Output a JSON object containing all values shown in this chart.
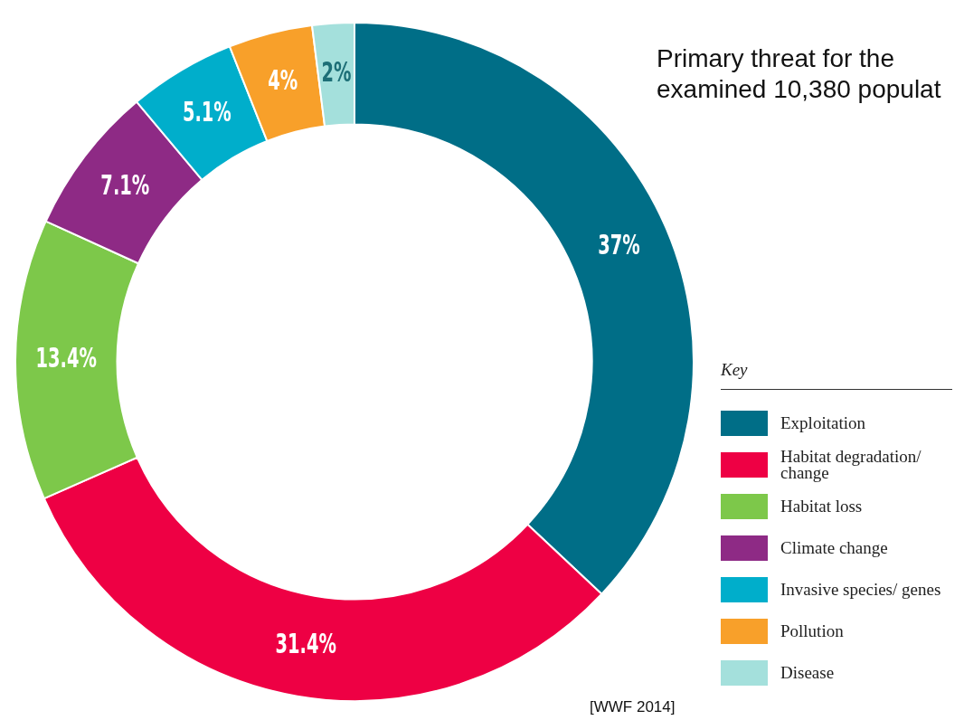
{
  "chart_data": {
    "type": "donut",
    "title": "Primary threat for the examined 10,380 populat",
    "categories": [
      "Exploitation",
      "Habitat degradation/ change",
      "Habitat loss",
      "Climate change",
      "Invasive species/ genes",
      "Pollution",
      "Disease"
    ],
    "values": [
      37,
      31.4,
      13.4,
      7.1,
      5.1,
      4,
      2
    ],
    "value_labels": [
      "37%",
      "31.4%",
      "13.4%",
      "7.1%",
      "5.1%",
      "4%",
      "2%"
    ],
    "colors": [
      "#006e87",
      "#ee0044",
      "#7dc84a",
      "#8e2a85",
      "#00aecb",
      "#f8a02a",
      "#a4e0dc"
    ],
    "legend": "bottom right",
    "legend_title": "Key",
    "annotations": [
      "[WWF 2014]"
    ]
  }
}
